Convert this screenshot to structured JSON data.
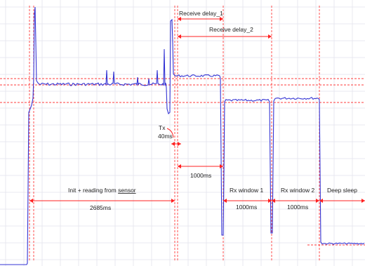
{
  "chart_data": {
    "type": "line",
    "title": "",
    "xlabel": "",
    "ylabel": "",
    "grid": true,
    "colors": {
      "trace": "#3434d4",
      "annotation": "#ff2020",
      "grid": "#e3e3ec"
    },
    "phases": [
      {
        "id": "init",
        "label": "Init + reading from sensor",
        "underlined_word": "sensor",
        "duration": "2685ms"
      },
      {
        "id": "tx",
        "label": "Tx",
        "duration": "40ms"
      },
      {
        "id": "wait",
        "label": "",
        "duration": "1000ms"
      },
      {
        "id": "rx1",
        "label": "Rx window 1",
        "duration": "1000ms"
      },
      {
        "id": "rx2",
        "label": "Rx window 2",
        "duration": "1000ms"
      },
      {
        "id": "sleep",
        "label": "Deep sleep",
        "duration": ""
      }
    ],
    "spans": [
      {
        "id": "rd1",
        "label": "Receive delay_1"
      },
      {
        "id": "rd2",
        "label": "Receive delay_2"
      }
    ]
  }
}
